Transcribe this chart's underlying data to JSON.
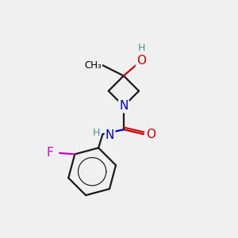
{
  "bg_color": "#f0f0f0",
  "atom_colors": {
    "C": "#000000",
    "N": "#0000cc",
    "O": "#cc0000",
    "F": "#cc00cc",
    "H": "#4a9090"
  },
  "bond_color": "#1a1a1a",
  "bond_width": 1.6,
  "figsize": [
    3.0,
    3.0
  ],
  "dpi": 100,
  "fontsize_large": 11,
  "fontsize_small": 9
}
